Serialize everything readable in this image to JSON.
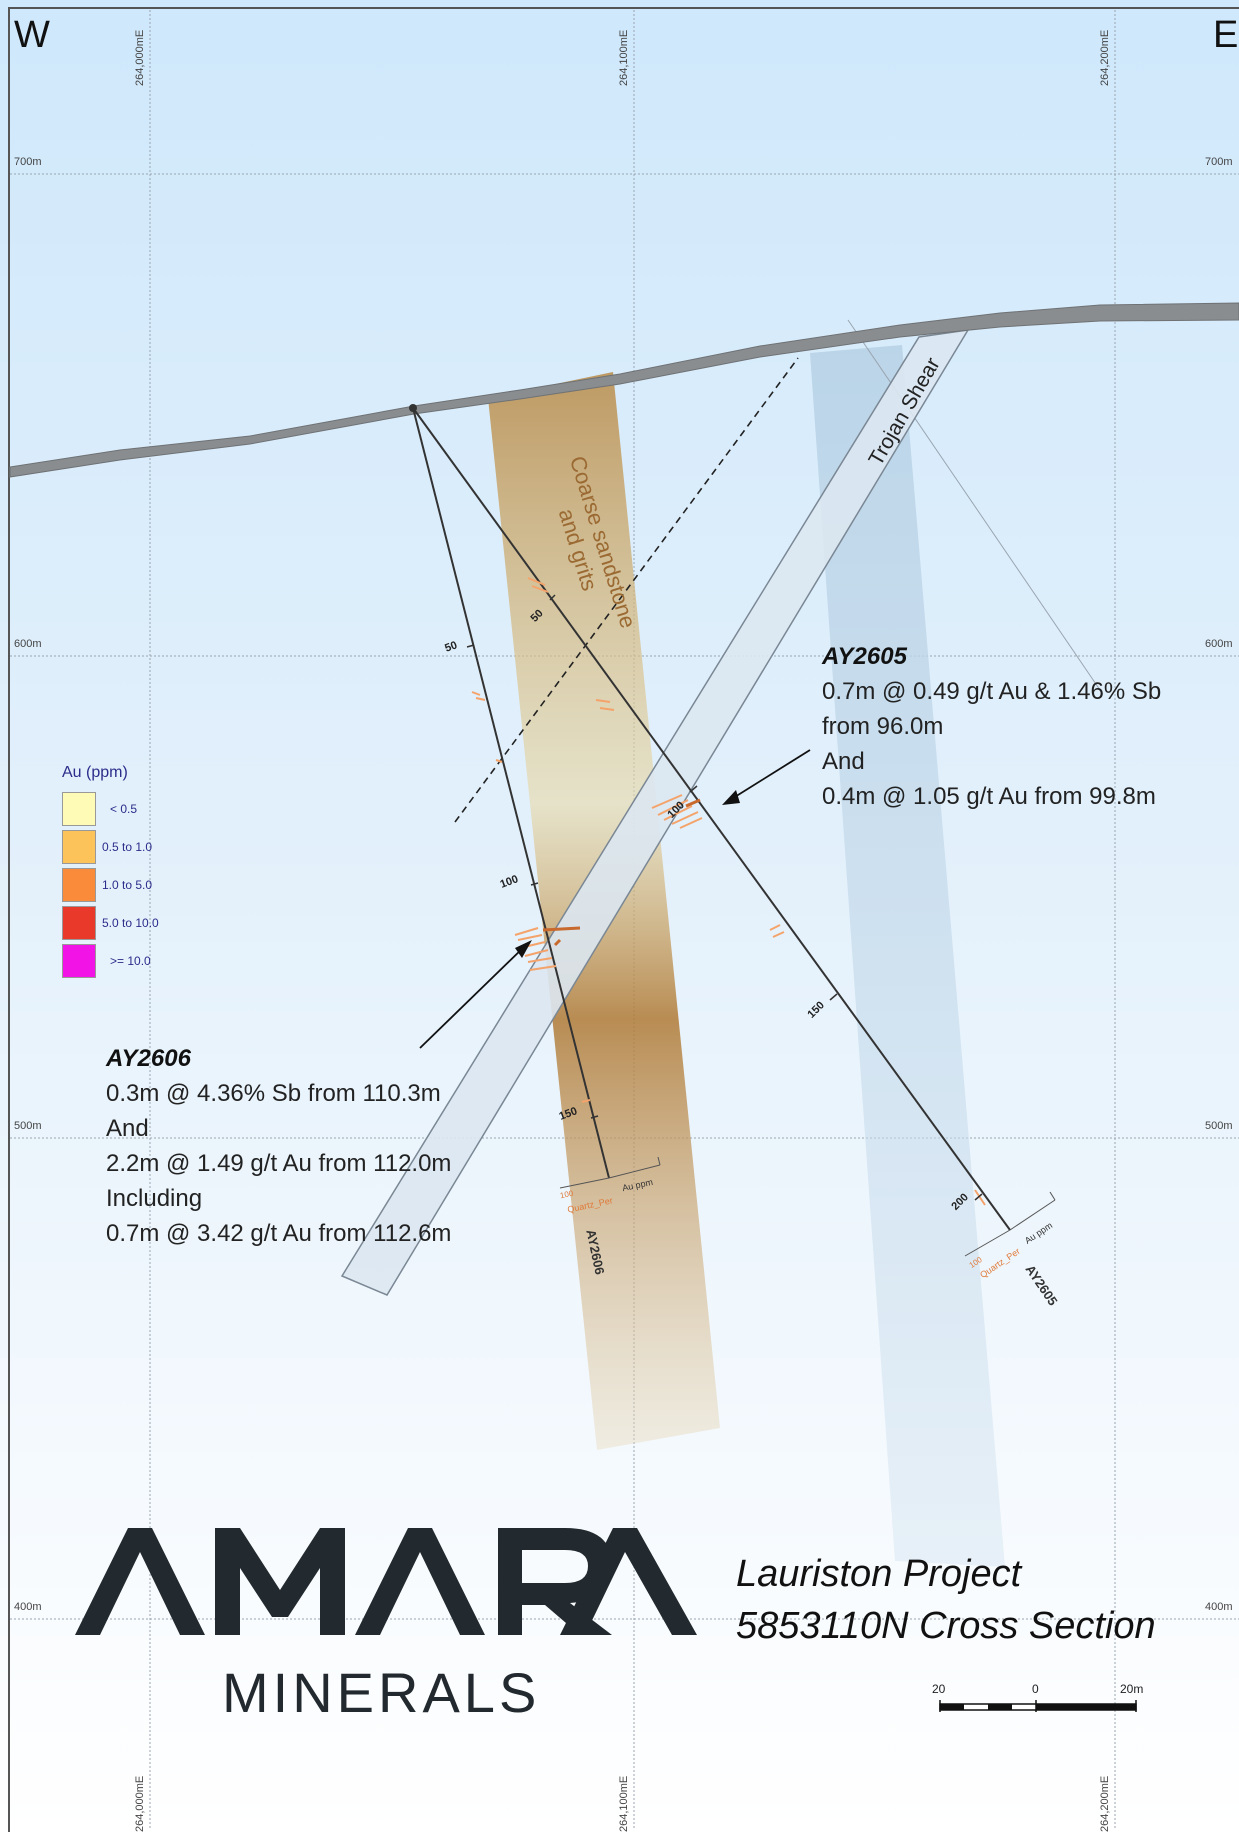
{
  "compass": {
    "west": "W",
    "east": "E"
  },
  "easting_labels": [
    "264,000mE",
    "264,100mE",
    "264,200mE"
  ],
  "elevation_labels": [
    "700m",
    "600m",
    "500m",
    "400m"
  ],
  "units": {
    "Coarse sandstone": "Coarse sandstone",
    "grits_line": "and grits",
    "shear": "Trojan Shear"
  },
  "legend": {
    "title": "Au (ppm)",
    "items": [
      {
        "label": "< 0.5",
        "color": "#fdfbb6"
      },
      {
        "label": "0.5 to 1.0",
        "color": "#fbc35a"
      },
      {
        "label": "1.0 to 5.0",
        "color": "#f98b3b"
      },
      {
        "label": "5.0 to 10.0",
        "color": "#e8392a"
      },
      {
        "label": ">= 10.0",
        "color": "#f213e6"
      }
    ]
  },
  "holes": {
    "ay2605": {
      "name": "AY2605",
      "depth_labels": [
        "50",
        "100",
        "150",
        "200"
      ],
      "plot_labels": {
        "scale": "100",
        "a": "Quartz_Per",
        "b": "Au ppm"
      }
    },
    "ay2606": {
      "name": "AY2606",
      "depth_labels": [
        "50",
        "100",
        "150"
      ],
      "plot_labels": {
        "scale": "100",
        "a": "Quartz_Per",
        "b": "Au ppm"
      }
    }
  },
  "callouts": {
    "ay2605": {
      "title": "AY2605",
      "lines": [
        "0.7m @ 0.49 g/t Au & 1.46% Sb",
        "from 96.0m",
        "And",
        "0.4m @ 1.05 g/t Au from 99.8m"
      ]
    },
    "ay2606": {
      "title": "AY2606",
      "lines": [
        "0.3m @ 4.36% Sb from 110.3m",
        "And",
        "2.2m @ 1.49 g/t Au from 112.0m",
        "Including",
        "0.7m @ 3.42 g/t Au from 112.6m"
      ]
    }
  },
  "branding": {
    "logo_main": "AMARA",
    "logo_sub": "MINERALS"
  },
  "project_title": {
    "line1": "Lauriston Project",
    "line2": "5853110N Cross Section"
  },
  "scale_bar": {
    "left": "20",
    "mid": "0",
    "right": "20m"
  }
}
